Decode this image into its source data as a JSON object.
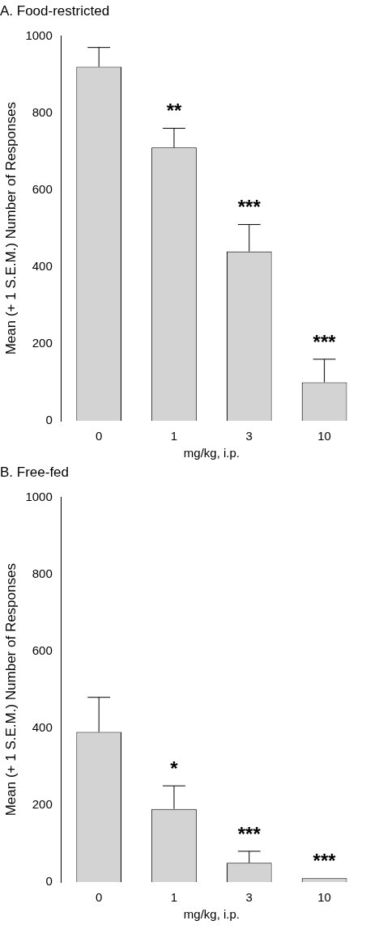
{
  "chart_data": [
    {
      "type": "bar",
      "title": "A. Food-restricted",
      "xlabel": "mg/kg, i.p.",
      "ylabel": "Mean (+ 1 S.E.M.) Number of Responses",
      "categories": [
        "0",
        "1",
        "3",
        "10"
      ],
      "values": [
        920,
        710,
        440,
        100
      ],
      "color": "#d3d3d3",
      "errors": [
        [
          920,
          970
        ],
        [
          710,
          760
        ],
        [
          440,
          510
        ],
        [
          100,
          160
        ]
      ],
      "ylim": [
        0,
        1000
      ],
      "yticks": [
        0,
        200,
        400,
        600,
        800,
        1000
      ],
      "annotations": [
        {
          "text": "**",
          "x": "1",
          "y": 760
        },
        {
          "text": "***",
          "x": "3",
          "y": 510
        },
        {
          "text": "***",
          "x": "10",
          "y": 160
        }
      ]
    },
    {
      "type": "bar",
      "title": "B. Free-fed",
      "xlabel": "mg/kg, i.p.",
      "ylabel": "Mean (+ 1 S.E.M.) Number of Responses",
      "categories": [
        "0",
        "1",
        "3",
        "10"
      ],
      "values": [
        390,
        190,
        50,
        10
      ],
      "color": "#d3d3d3",
      "errors": [
        [
          390,
          480
        ],
        [
          190,
          250
        ],
        [
          50,
          80
        ],
        null
      ],
      "ylim": [
        0,
        1000
      ],
      "yticks": [
        0,
        200,
        400,
        600,
        800,
        1000
      ],
      "annotations": [
        {
          "text": "*",
          "x": "1",
          "y": 250
        },
        {
          "text": "***",
          "x": "3",
          "y": 80
        },
        {
          "text": "***",
          "x": "10",
          "y": 10
        }
      ]
    }
  ]
}
